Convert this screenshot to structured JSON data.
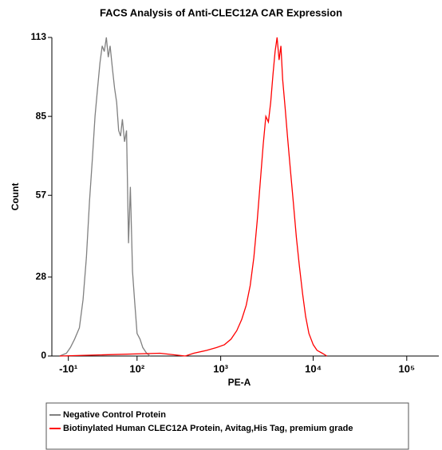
{
  "chart_data": {
    "type": "line",
    "title": "FACS Analysis of Anti-CLEC12A CAR Expression",
    "x_label": "PE-A",
    "y_label": "Count",
    "xscale": "symlog",
    "xlim": [
      -31,
      220000
    ],
    "xticks": [
      {
        "value": -10,
        "label": "-10¹"
      },
      {
        "value": 100,
        "label": "10²"
      },
      {
        "value": 1000,
        "label": "10³"
      },
      {
        "value": 10000,
        "label": "10⁴"
      },
      {
        "value": 100000,
        "label": "10⁵"
      }
    ],
    "ylim": [
      0,
      113
    ],
    "yticks": [
      0,
      28,
      57,
      85,
      113
    ],
    "series": [
      {
        "name": "Negative Control Protein",
        "color": "#808080",
        "x": [
          -20,
          -12,
          -8,
          -4,
          0,
          3,
          6,
          9,
          12,
          15,
          18,
          21,
          24,
          27,
          30,
          33,
          36,
          40,
          44,
          48,
          52,
          56,
          60,
          65,
          70,
          75,
          80,
          86,
          92,
          100,
          110,
          120,
          135,
          150
        ],
        "values": [
          0,
          1,
          3,
          6,
          10,
          20,
          35,
          55,
          70,
          85,
          95,
          104,
          110,
          108,
          113,
          106,
          110,
          102,
          95,
          90,
          80,
          78,
          84,
          76,
          80,
          40,
          60,
          30,
          20,
          8,
          6,
          3,
          1,
          0
        ]
      },
      {
        "name": "Biotinylated Human CLEC12A Protein, Avitag,His Tag, premium grade",
        "color": "#ff0000",
        "x": [
          -20,
          200,
          400,
          500,
          700,
          900,
          1100,
          1300,
          1500,
          1700,
          1900,
          2100,
          2300,
          2500,
          2700,
          2900,
          3100,
          3300,
          3500,
          3700,
          3900,
          4100,
          4300,
          4500,
          4700,
          5000,
          5300,
          5700,
          6100,
          6600,
          7100,
          7700,
          8300,
          9000,
          10000,
          11000,
          12500,
          14000
        ],
        "values": [
          0,
          1,
          0,
          1,
          2,
          3,
          4,
          6,
          9,
          13,
          18,
          25,
          35,
          48,
          62,
          75,
          85,
          83,
          90,
          100,
          108,
          113,
          105,
          110,
          98,
          88,
          78,
          66,
          55,
          42,
          32,
          22,
          14,
          8,
          4,
          2,
          1,
          0
        ]
      }
    ]
  }
}
